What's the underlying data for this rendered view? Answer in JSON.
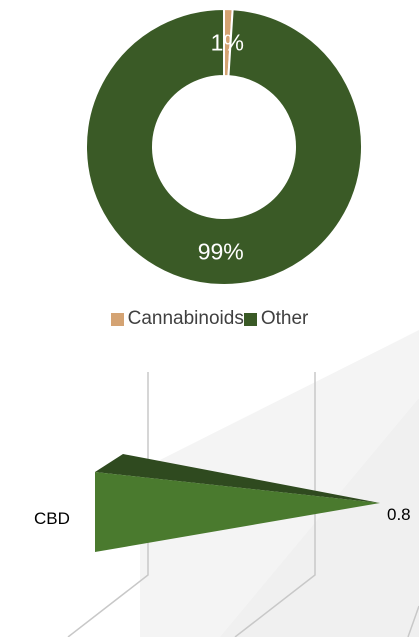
{
  "chart_data": [
    {
      "type": "pie",
      "variant": "donut",
      "categories": [
        "Cannabinoids",
        "Other"
      ],
      "values": [
        1,
        99
      ],
      "labels": [
        "1%",
        "99%"
      ],
      "colors": [
        "#d4a373",
        "#3a5a26"
      ],
      "legend": {
        "placement": "bottom",
        "items": [
          {
            "name": "Cannabinoids",
            "color": "#d4a373"
          },
          {
            "name": "Other",
            "color": "#3a5a26"
          }
        ]
      }
    },
    {
      "type": "bar",
      "variant": "3d-cone-horizontal",
      "categories": [
        "CBD"
      ],
      "values": [
        0.8
      ],
      "value_labels": [
        "0.8"
      ],
      "color": "#4a7a2e",
      "xlim": [
        0,
        1
      ],
      "grid": true
    }
  ]
}
